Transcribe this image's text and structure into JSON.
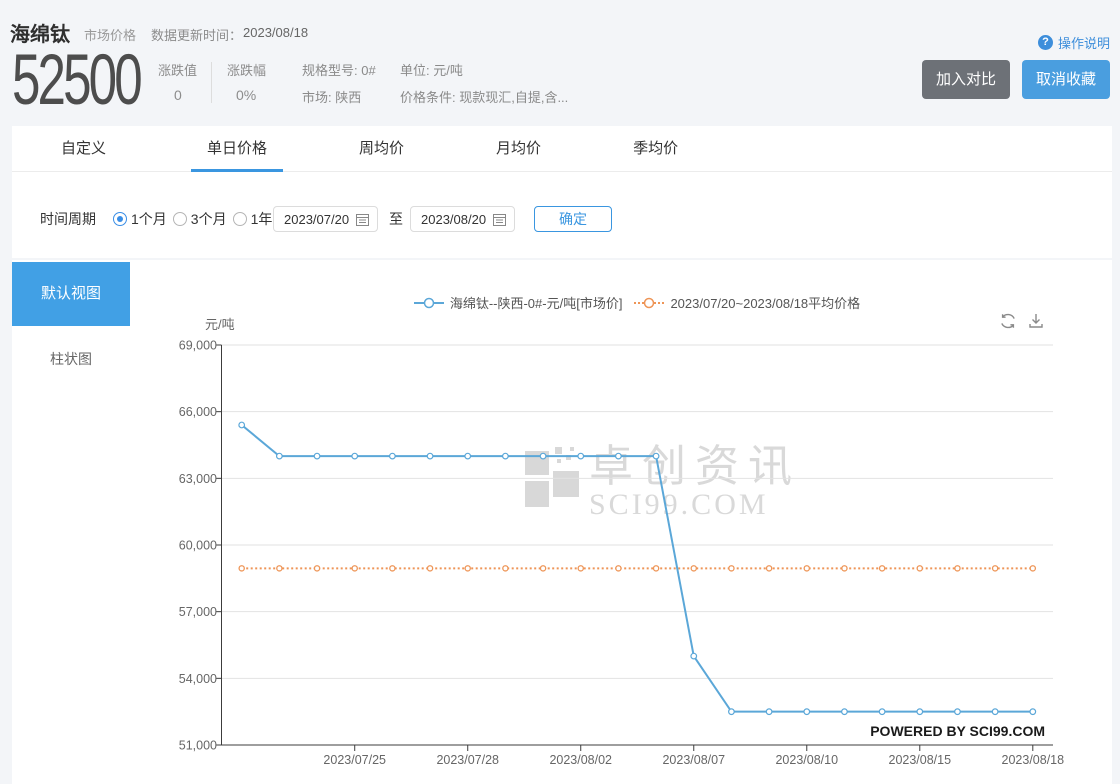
{
  "header": {
    "title": "海绵钛",
    "subtitle": "市场价格",
    "update_label": "数据更新时间：",
    "update_date": "2023/08/18",
    "price": "52500",
    "change_value_label": "涨跌值",
    "change_value": "0",
    "change_pct_label": "涨跌幅",
    "change_pct": "0%",
    "spec_model": "规格型号: 0#",
    "market": "市场: 陕西",
    "unit": "单位: 元/吨",
    "price_condition": "价格条件: 现款现汇,自提,含...",
    "help_label": "操作说明",
    "help_icon_glyph": "?",
    "compare_button": "加入对比",
    "favorite_button": "取消收藏"
  },
  "tabs": [
    {
      "label": "自定义",
      "active": false
    },
    {
      "label": "单日价格",
      "active": true
    },
    {
      "label": "周均价",
      "active": false
    },
    {
      "label": "月均价",
      "active": false
    },
    {
      "label": "季均价",
      "active": false
    }
  ],
  "filters": {
    "period_label": "时间周期",
    "options": [
      {
        "label": "1个月",
        "selected": true
      },
      {
        "label": "3个月",
        "selected": false
      },
      {
        "label": "1年",
        "selected": false
      }
    ],
    "start_date": "2023/07/20",
    "to_label": "至",
    "end_date": "2023/08/20",
    "confirm_button": "确定"
  },
  "sidebar": [
    {
      "label": "默认视图",
      "active": true
    },
    {
      "label": "柱状图",
      "active": false
    }
  ],
  "chart_data": {
    "type": "line",
    "unit_label": "元/吨",
    "legend": [
      {
        "label": "海绵钛--陕西-0#-元/吨[市场价]",
        "color": "#5BA7D8",
        "style": "solid"
      },
      {
        "label": "2023/07/20~2023/08/18平均价格",
        "color": "#EE9557",
        "style": "dotted"
      }
    ],
    "x": [
      "2023/07/20",
      "2023/07/21",
      "2023/07/24",
      "2023/07/25",
      "2023/07/26",
      "2023/07/27",
      "2023/07/28",
      "2023/07/31",
      "2023/08/01",
      "2023/08/02",
      "2023/08/03",
      "2023/08/04",
      "2023/08/07",
      "2023/08/08",
      "2023/08/09",
      "2023/08/10",
      "2023/08/11",
      "2023/08/14",
      "2023/08/15",
      "2023/08/16",
      "2023/08/17",
      "2023/08/18"
    ],
    "values": [
      65400,
      64000,
      64000,
      64000,
      64000,
      64000,
      64000,
      64000,
      64000,
      64000,
      64000,
      64000,
      55000,
      52500,
      52500,
      52500,
      52500,
      52500,
      52500,
      52500,
      52500,
      52500
    ],
    "average_value": 58950,
    "ylim": [
      51000,
      69000
    ],
    "ytick_step": 3000,
    "x_axis_labels": [
      "2023/07/25",
      "2023/07/28",
      "2023/08/02",
      "2023/08/07",
      "2023/08/10",
      "2023/08/15",
      "2023/08/18"
    ],
    "watermark_cn": "卓创资讯",
    "watermark_en": "SCI99.COM",
    "powered_by": "POWERED BY SCI99.COM"
  }
}
